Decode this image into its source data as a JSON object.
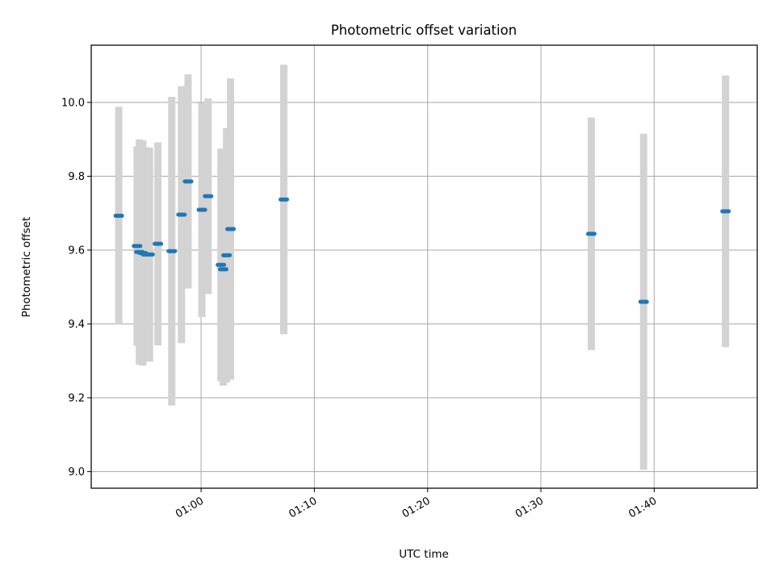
{
  "chart_data": {
    "type": "scatter",
    "title": "Photometric offset variation",
    "xlabel": "UTC time",
    "ylabel": "Photometric offset",
    "x_unit": "minutes after 00:00 UTC",
    "xlim": [
      50.3,
      109.1
    ],
    "ylim": [
      8.955,
      10.155
    ],
    "x_ticks": [
      {
        "value": 60,
        "label": "01:00"
      },
      {
        "value": 70,
        "label": "01:10"
      },
      {
        "value": 80,
        "label": "01:20"
      },
      {
        "value": 90,
        "label": "01:30"
      },
      {
        "value": 100,
        "label": "01:40"
      }
    ],
    "y_ticks": [
      {
        "value": 9.0,
        "label": "9.0"
      },
      {
        "value": 9.2,
        "label": "9.2"
      },
      {
        "value": 9.4,
        "label": "9.4"
      },
      {
        "value": 9.6,
        "label": "9.6"
      },
      {
        "value": 9.8,
        "label": "9.8"
      },
      {
        "value": 10.0,
        "label": "10.0"
      }
    ],
    "grid": true,
    "legend": "none",
    "marker_color": "#1f77b4",
    "errorbar_color": "#d3d3d3",
    "points": [
      {
        "x": 52.73,
        "y": 9.693,
        "err": 0.295
      },
      {
        "x": 54.35,
        "y": 9.611,
        "err": 0.27
      },
      {
        "x": 54.55,
        "y": 9.595,
        "err": 0.305
      },
      {
        "x": 54.85,
        "y": 9.592,
        "err": 0.305
      },
      {
        "x": 55.15,
        "y": 9.588,
        "err": 0.29
      },
      {
        "x": 55.45,
        "y": 9.588,
        "err": 0.29
      },
      {
        "x": 56.19,
        "y": 9.617,
        "err": 0.275
      },
      {
        "x": 57.41,
        "y": 9.597,
        "err": 0.418
      },
      {
        "x": 58.27,
        "y": 9.696,
        "err": 0.348
      },
      {
        "x": 58.85,
        "y": 9.786,
        "err": 0.29
      },
      {
        "x": 60.07,
        "y": 9.709,
        "err": 0.29
      },
      {
        "x": 60.62,
        "y": 9.746,
        "err": 0.265
      },
      {
        "x": 61.75,
        "y": 9.56,
        "err": 0.315
      },
      {
        "x": 61.95,
        "y": 9.548,
        "err": 0.315
      },
      {
        "x": 62.25,
        "y": 9.586,
        "err": 0.345
      },
      {
        "x": 62.6,
        "y": 9.657,
        "err": 0.408
      },
      {
        "x": 67.3,
        "y": 9.737,
        "err": 0.365
      },
      {
        "x": 94.45,
        "y": 9.644,
        "err": 0.315
      },
      {
        "x": 99.07,
        "y": 9.46,
        "err": 0.455
      },
      {
        "x": 106.3,
        "y": 9.705,
        "err": 0.368
      }
    ]
  }
}
